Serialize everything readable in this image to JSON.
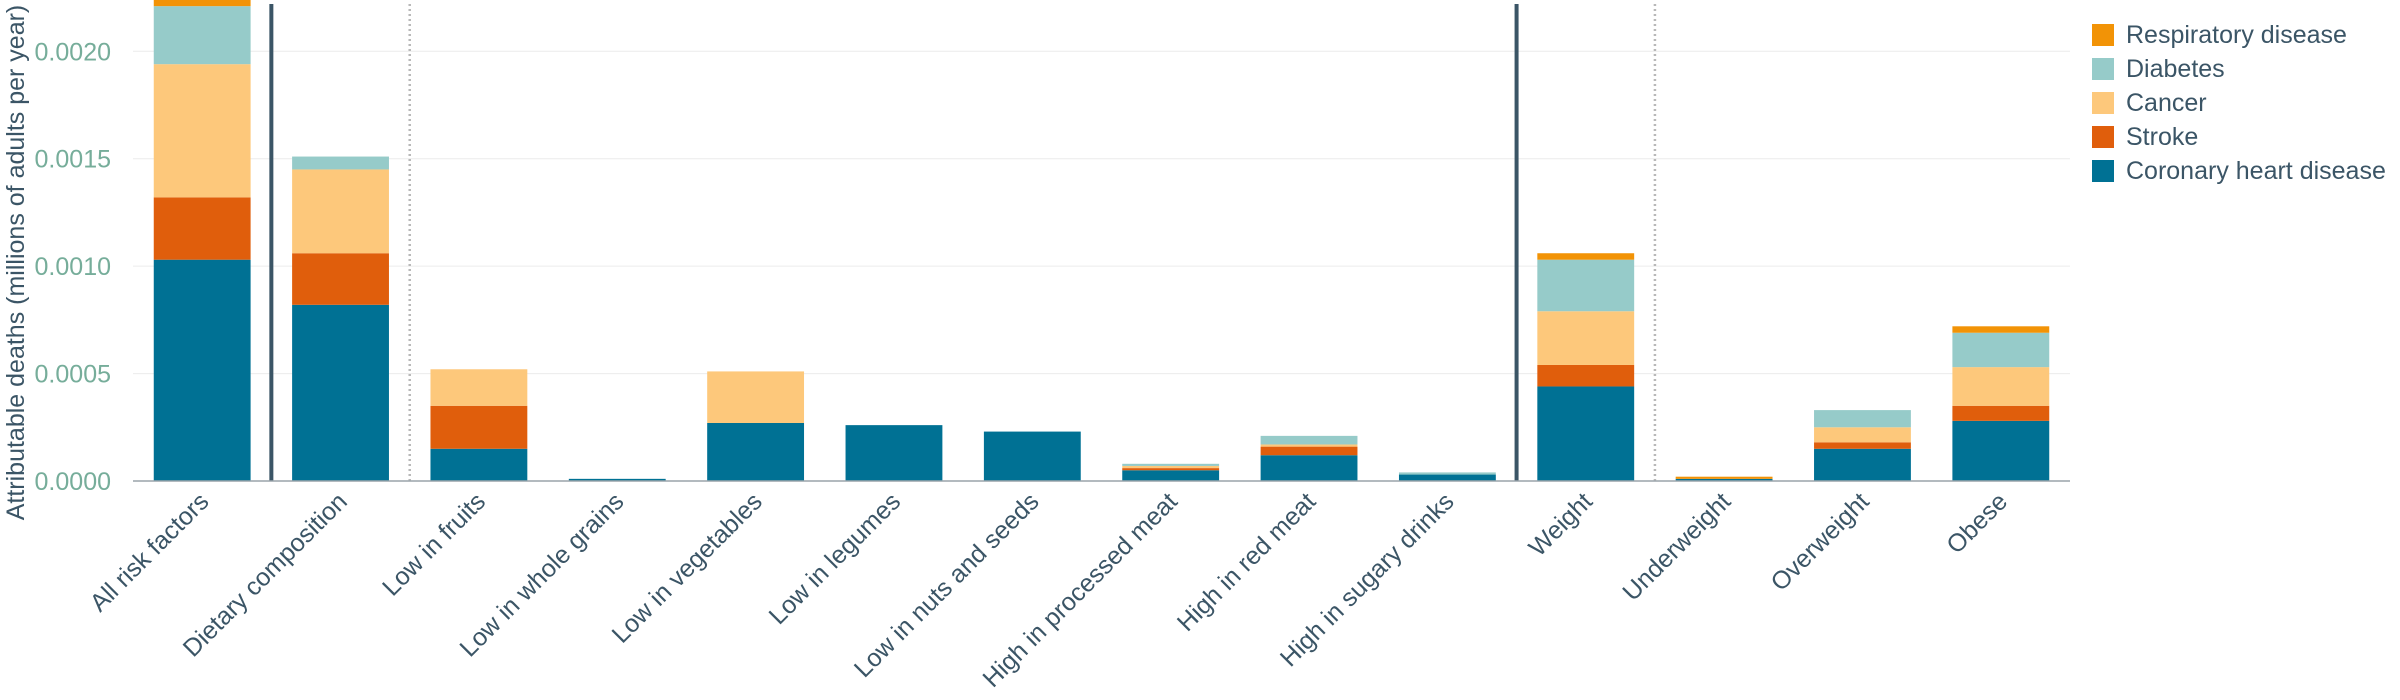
{
  "chart_data": {
    "type": "bar",
    "stacked": true,
    "ylabel": "Attributable deaths (millions of adults per year)",
    "ylim": [
      0,
      0.00222
    ],
    "yticks": [
      "0.0000",
      "0.0005",
      "0.0010",
      "0.0015",
      "0.0020"
    ],
    "ytick_values": [
      0,
      0.0005,
      0.001,
      0.0015,
      0.002
    ],
    "grid": true,
    "legend_position": "top-right",
    "categories": [
      "All risk factors",
      "Dietary composition",
      "Low in fruits",
      "Low in whole grains",
      "Low in vegetables",
      "Low in legumes",
      "Low in nuts and seeds",
      "High in processed meat",
      "High in red meat",
      "High in sugary drinks",
      "Weight",
      "Underweight",
      "Overweight",
      "Obese"
    ],
    "separators": [
      {
        "after_index": 0,
        "style": "solid"
      },
      {
        "after_index": 1,
        "style": "dotted"
      },
      {
        "after_index": 9,
        "style": "solid"
      },
      {
        "after_index": 10,
        "style": "dotted"
      }
    ],
    "series": [
      {
        "name": "Coronary heart disease",
        "color": "#007194",
        "values": [
          0.00103,
          0.00082,
          0.00015,
          1e-05,
          0.00027,
          0.00026,
          0.00023,
          5e-05,
          0.00012,
          3e-05,
          0.00044,
          1e-05,
          0.00015,
          0.00028
        ]
      },
      {
        "name": "Stroke",
        "color": "#e05e0c",
        "values": [
          0.00029,
          0.00024,
          0.0002,
          0,
          0,
          0,
          0,
          1e-05,
          4e-05,
          0,
          0.0001,
          0,
          3e-05,
          7e-05
        ]
      },
      {
        "name": "Cancer",
        "color": "#fdc87b",
        "values": [
          0.00062,
          0.00039,
          0.00017,
          0,
          0.00024,
          0,
          0,
          1e-05,
          1e-05,
          0,
          0.00025,
          0,
          7e-05,
          0.00018
        ]
      },
      {
        "name": "Diabetes",
        "color": "#96cbc9",
        "values": [
          0.00027,
          6e-05,
          0,
          0,
          0,
          0,
          0,
          1e-05,
          4e-05,
          1e-05,
          0.00024,
          0,
          8e-05,
          0.00016
        ]
      },
      {
        "name": "Respiratory disease",
        "color": "#f29306",
        "values": [
          3e-05,
          0,
          0,
          0,
          0,
          0,
          0,
          0,
          0,
          0,
          3e-05,
          1e-05,
          0,
          3e-05
        ]
      }
    ],
    "legend": [
      "Respiratory disease",
      "Diabetes",
      "Cancer",
      "Stroke",
      "Coronary heart disease"
    ]
  }
}
